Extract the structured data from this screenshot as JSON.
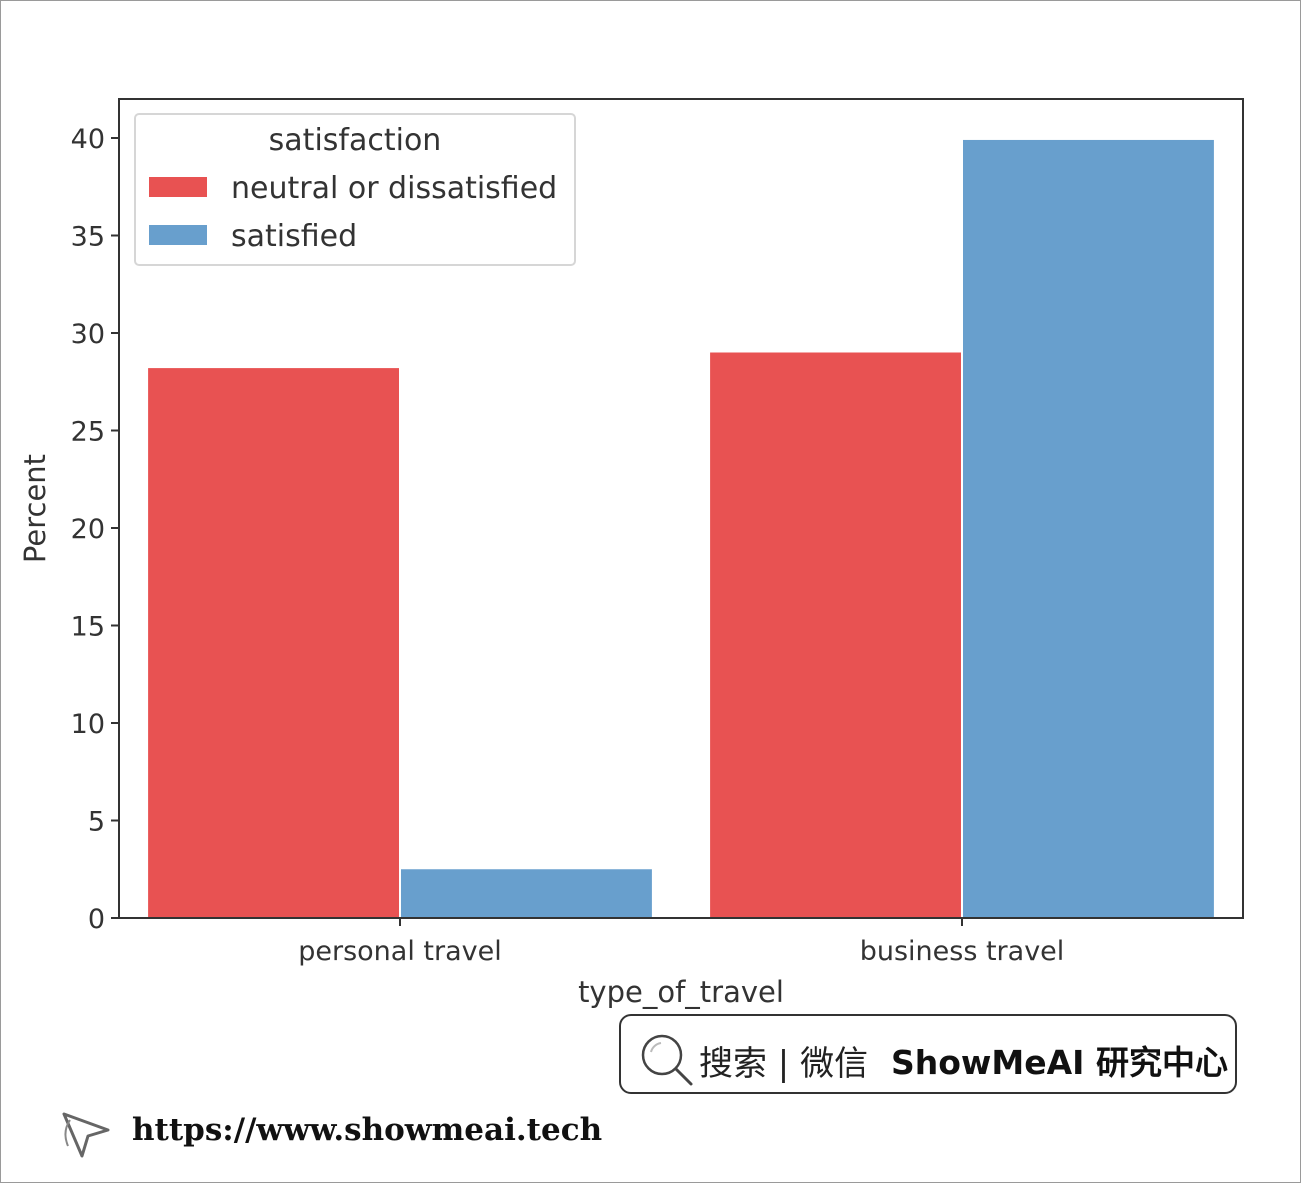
{
  "chart_data": {
    "type": "bar",
    "categories": [
      "personal travel",
      "business travel"
    ],
    "series": [
      {
        "name": "neutral or dissatisfied",
        "values": [
          28.2,
          29.0
        ],
        "color": "#e85252"
      },
      {
        "name": "satisfied",
        "values": [
          2.5,
          39.9
        ],
        "color": "#689fcd"
      }
    ],
    "xlabel": "type_of_travel",
    "ylabel": "Percent",
    "ylim": [
      0,
      42
    ],
    "yticks": [
      0,
      5,
      10,
      15,
      20,
      25,
      30,
      35,
      40
    ],
    "legend_title": "satisfaction",
    "legend_position": "top-left",
    "grid": false
  },
  "watermark": {
    "search_label": "搜索 | 微信",
    "brand": "ShowMeAI 研究中心",
    "url": "https://www.showmeai.tech",
    "search_icon": "search-icon",
    "cursor_icon": "cursor-icon"
  }
}
